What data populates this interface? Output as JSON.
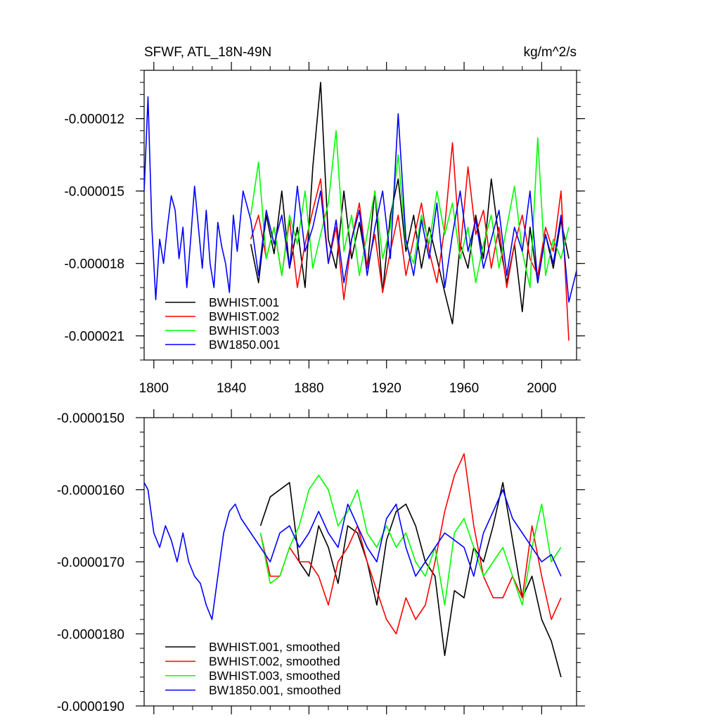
{
  "chart_data": [
    {
      "type": "line",
      "title": "SFWF, ATL_18N-49N",
      "units": "kg/m^2/s",
      "xlabel": "",
      "ylabel": "",
      "xlim": [
        1795,
        2018
      ],
      "ylim": [
        -2.2e-05,
        -1e-05
      ],
      "xticks": [
        1800,
        1840,
        1880,
        1920,
        1960,
        2000
      ],
      "xtick_labels": [
        "1800",
        "1840",
        "1880",
        "1920",
        "1960",
        "2000"
      ],
      "yticks": [
        -1.2e-05,
        -1.5e-05,
        -1.8e-05,
        -2.1e-05
      ],
      "ytick_labels": [
        "-0.000012",
        "-0.000015",
        "-0.000018",
        "-0.000021"
      ],
      "legend_position": "bottom-left",
      "series": [
        {
          "name": "BWHIST.001",
          "color": "#000000",
          "x": [
            1850,
            1854,
            1858,
            1862,
            1866,
            1870,
            1874,
            1878,
            1882,
            1886,
            1890,
            1894,
            1898,
            1902,
            1906,
            1910,
            1914,
            1918,
            1922,
            1926,
            1930,
            1934,
            1938,
            1942,
            1946,
            1950,
            1954,
            1958,
            1962,
            1966,
            1970,
            1974,
            1978,
            1982,
            1986,
            1990,
            1994,
            1998,
            2002,
            2006,
            2010,
            2014
          ],
          "values": [
            -1.72e-05,
            -1.88e-05,
            -1.6e-05,
            -1.76e-05,
            -1.5e-05,
            -1.82e-05,
            -1.65e-05,
            -1.9e-05,
            -1.4e-05,
            -1.05e-05,
            -1.7e-05,
            -1.82e-05,
            -1.5e-05,
            -1.78e-05,
            -1.63e-05,
            -1.82e-05,
            -1.5e-05,
            -1.92e-05,
            -1.6e-05,
            -1.45e-05,
            -1.75e-05,
            -1.6e-05,
            -1.82e-05,
            -1.65e-05,
            -1.78e-05,
            -1.92e-05,
            -2.05e-05,
            -1.72e-05,
            -1.82e-05,
            -1.6e-05,
            -1.78e-05,
            -1.45e-05,
            -1.7e-05,
            -1.88e-05,
            -1.72e-05,
            -2e-05,
            -1.65e-05,
            -1.88e-05,
            -1.68e-05,
            -1.82e-05,
            -1.62e-05,
            -1.78e-05
          ]
        },
        {
          "name": "BWHIST.002",
          "color": "#ff0000",
          "x": [
            1850,
            1854,
            1858,
            1862,
            1866,
            1870,
            1874,
            1878,
            1882,
            1886,
            1890,
            1894,
            1898,
            1902,
            1906,
            1910,
            1914,
            1918,
            1922,
            1926,
            1930,
            1934,
            1938,
            1942,
            1946,
            1950,
            1954,
            1958,
            1962,
            1966,
            1970,
            1974,
            1978,
            1982,
            1986,
            1990,
            1994,
            1998,
            2002,
            2006,
            2010,
            2014
          ],
          "values": [
            -1.7e-05,
            -1.6e-05,
            -1.78e-05,
            -1.65e-05,
            -1.85e-05,
            -1.62e-05,
            -1.9e-05,
            -1.72e-05,
            -1.58e-05,
            -1.45e-05,
            -1.8e-05,
            -1.65e-05,
            -1.95e-05,
            -1.7e-05,
            -1.55e-05,
            -1.82e-05,
            -1.68e-05,
            -1.92e-05,
            -1.75e-05,
            -1.6e-05,
            -1.85e-05,
            -1.7e-05,
            -1.55e-05,
            -1.75e-05,
            -1.88e-05,
            -1.65e-05,
            -1.3e-05,
            -1.75e-05,
            -1.4e-05,
            -1.68e-05,
            -1.58e-05,
            -1.82e-05,
            -1.65e-05,
            -1.9e-05,
            -1.72e-05,
            -1.6e-05,
            -1.78e-05,
            -1.85e-05,
            -1.65e-05,
            -1.75e-05,
            -1.5e-05,
            -2.12e-05
          ]
        },
        {
          "name": "BWHIST.003",
          "color": "#00ff00",
          "x": [
            1850,
            1854,
            1858,
            1862,
            1866,
            1870,
            1874,
            1878,
            1882,
            1886,
            1890,
            1894,
            1898,
            1902,
            1906,
            1910,
            1914,
            1918,
            1922,
            1926,
            1930,
            1934,
            1938,
            1942,
            1946,
            1950,
            1954,
            1958,
            1962,
            1966,
            1970,
            1974,
            1978,
            1982,
            1986,
            1990,
            1994,
            1998,
            2002,
            2006,
            2010,
            2014
          ],
          "values": [
            -1.6e-05,
            -1.38e-05,
            -1.78e-05,
            -1.65e-05,
            -1.85e-05,
            -1.6e-05,
            -1.72e-05,
            -1.5e-05,
            -1.82e-05,
            -1.68e-05,
            -1.55e-05,
            -1.25e-05,
            -1.75e-05,
            -1.6e-05,
            -1.85e-05,
            -1.68e-05,
            -1.5e-05,
            -1.78e-05,
            -1.65e-05,
            -1.35e-05,
            -1.72e-05,
            -1.8e-05,
            -1.6e-05,
            -1.72e-05,
            -1.5e-05,
            -1.68e-05,
            -1.55e-05,
            -1.78e-05,
            -1.65e-05,
            -1.88e-05,
            -1.72e-05,
            -1.6e-05,
            -1.82e-05,
            -1.65e-05,
            -1.48e-05,
            -1.75e-05,
            -1.9e-05,
            -1.28e-05,
            -1.85e-05,
            -1.7e-05,
            -1.78e-05,
            -1.65e-05
          ]
        },
        {
          "name": "BW1850.001",
          "color": "#0000ff",
          "x": [
            1795,
            1797,
            1799,
            1801,
            1803,
            1805,
            1807,
            1809,
            1811,
            1813,
            1815,
            1817,
            1819,
            1821,
            1823,
            1825,
            1827,
            1829,
            1831,
            1833,
            1835,
            1837,
            1839,
            1841,
            1843,
            1846,
            1850,
            1854,
            1858,
            1862,
            1866,
            1870,
            1874,
            1878,
            1882,
            1886,
            1890,
            1894,
            1898,
            1902,
            1906,
            1910,
            1914,
            1918,
            1922,
            1926,
            1930,
            1934,
            1938,
            1942,
            1946,
            1950,
            1954,
            1958,
            1962,
            1966,
            1970,
            1974,
            1978,
            1982,
            1986,
            1990,
            1994,
            1998,
            2002,
            2006,
            2010,
            2014,
            2018
          ],
          "values": [
            -1.5e-05,
            -1.11e-05,
            -1.65e-05,
            -1.95e-05,
            -1.7e-05,
            -1.8e-05,
            -1.65e-05,
            -1.52e-05,
            -1.58e-05,
            -1.78e-05,
            -1.65e-05,
            -1.9e-05,
            -1.7e-05,
            -1.48e-05,
            -1.65e-05,
            -1.82e-05,
            -1.58e-05,
            -1.8e-05,
            -1.9e-05,
            -1.63e-05,
            -1.73e-05,
            -1.8e-05,
            -1.92e-05,
            -1.6e-05,
            -1.75e-05,
            -1.5e-05,
            -1.62e-05,
            -1.85e-05,
            -1.58e-05,
            -1.72e-05,
            -1.6e-05,
            -1.82e-05,
            -1.48e-05,
            -1.75e-05,
            -1.65e-05,
            -1.5e-05,
            -1.8e-05,
            -1.62e-05,
            -1.88e-05,
            -1.7e-05,
            -1.58e-05,
            -1.85e-05,
            -1.65e-05,
            -1.5e-05,
            -1.78e-05,
            -1.18e-05,
            -1.7e-05,
            -1.85e-05,
            -1.62e-05,
            -1.78e-05,
            -1.55e-05,
            -1.9e-05,
            -1.68e-05,
            -1.5e-05,
            -1.75e-05,
            -1.62e-05,
            -1.82e-05,
            -1.7e-05,
            -1.58e-05,
            -1.85e-05,
            -1.65e-05,
            -1.75e-05,
            -1.5e-05,
            -1.88e-05,
            -1.68e-05,
            -1.8e-05,
            -1.6e-05,
            -1.96e-05,
            -1.83e-05
          ]
        }
      ]
    },
    {
      "type": "line",
      "title": "",
      "xlabel": "",
      "ylabel": "",
      "xlim": [
        1795,
        2018
      ],
      "ylim": [
        -1.9e-05,
        -1.5e-05
      ],
      "xticks": [
        1800,
        1840,
        1880,
        1920,
        1960,
        2000
      ],
      "yticks": [
        -1.5e-05,
        -1.6e-05,
        -1.7e-05,
        -1.8e-05,
        -1.9e-05
      ],
      "ytick_labels": [
        "-0.0000150",
        "-0.0000160",
        "-0.0000170",
        "-0.0000180",
        "-0.0000190"
      ],
      "legend_position": "bottom-left",
      "series": [
        {
          "name": "BWHIST.001, smoothed",
          "color": "#000000",
          "x": [
            1855,
            1860,
            1865,
            1870,
            1875,
            1880,
            1885,
            1890,
            1895,
            1900,
            1905,
            1910,
            1915,
            1920,
            1925,
            1930,
            1935,
            1940,
            1945,
            1950,
            1955,
            1960,
            1965,
            1970,
            1975,
            1980,
            1985,
            1990,
            1995,
            2000,
            2005,
            2010
          ],
          "values": [
            -1.65e-05,
            -1.61e-05,
            -1.6e-05,
            -1.59e-05,
            -1.7e-05,
            -1.72e-05,
            -1.65e-05,
            -1.68e-05,
            -1.73e-05,
            -1.65e-05,
            -1.66e-05,
            -1.7e-05,
            -1.76e-05,
            -1.67e-05,
            -1.63e-05,
            -1.62e-05,
            -1.65e-05,
            -1.7e-05,
            -1.72e-05,
            -1.83e-05,
            -1.74e-05,
            -1.75e-05,
            -1.68e-05,
            -1.7e-05,
            -1.65e-05,
            -1.59e-05,
            -1.67e-05,
            -1.75e-05,
            -1.72e-05,
            -1.78e-05,
            -1.81e-05,
            -1.86e-05
          ]
        },
        {
          "name": "BWHIST.002, smoothed",
          "color": "#ff0000",
          "x": [
            1855,
            1860,
            1865,
            1870,
            1875,
            1880,
            1885,
            1890,
            1895,
            1900,
            1905,
            1910,
            1915,
            1920,
            1925,
            1930,
            1935,
            1940,
            1945,
            1950,
            1955,
            1960,
            1965,
            1970,
            1975,
            1980,
            1985,
            1990,
            1995,
            2000,
            2005,
            2010
          ],
          "values": [
            -1.66e-05,
            -1.72e-05,
            -1.72e-05,
            -1.68e-05,
            -1.7e-05,
            -1.7e-05,
            -1.72e-05,
            -1.76e-05,
            -1.7e-05,
            -1.68e-05,
            -1.65e-05,
            -1.7e-05,
            -1.74e-05,
            -1.78e-05,
            -1.8e-05,
            -1.75e-05,
            -1.78e-05,
            -1.76e-05,
            -1.7e-05,
            -1.63e-05,
            -1.58e-05,
            -1.55e-05,
            -1.65e-05,
            -1.72e-05,
            -1.75e-05,
            -1.75e-05,
            -1.72e-05,
            -1.75e-05,
            -1.65e-05,
            -1.72e-05,
            -1.78e-05,
            -1.75e-05
          ]
        },
        {
          "name": "BWHIST.003, smoothed",
          "color": "#00ff00",
          "x": [
            1855,
            1860,
            1865,
            1870,
            1875,
            1880,
            1885,
            1890,
            1895,
            1900,
            1905,
            1910,
            1915,
            1920,
            1925,
            1930,
            1935,
            1940,
            1945,
            1950,
            1955,
            1960,
            1965,
            1970,
            1975,
            1980,
            1985,
            1990,
            1995,
            2000,
            2005,
            2010
          ],
          "values": [
            -1.66e-05,
            -1.73e-05,
            -1.72e-05,
            -1.68e-05,
            -1.65e-05,
            -1.6e-05,
            -1.58e-05,
            -1.6e-05,
            -1.65e-05,
            -1.63e-05,
            -1.6e-05,
            -1.66e-05,
            -1.68e-05,
            -1.65e-05,
            -1.68e-05,
            -1.66e-05,
            -1.7e-05,
            -1.72e-05,
            -1.68e-05,
            -1.76e-05,
            -1.66e-05,
            -1.64e-05,
            -1.68e-05,
            -1.72e-05,
            -1.7e-05,
            -1.68e-05,
            -1.72e-05,
            -1.76e-05,
            -1.68e-05,
            -1.62e-05,
            -1.7e-05,
            -1.68e-05
          ]
        },
        {
          "name": "BW1850.001, smoothed",
          "color": "#0000ff",
          "x": [
            1795,
            1797,
            1800,
            1803,
            1806,
            1809,
            1812,
            1815,
            1818,
            1821,
            1824,
            1827,
            1830,
            1833,
            1836,
            1839,
            1842,
            1845,
            1850,
            1855,
            1860,
            1865,
            1870,
            1875,
            1880,
            1885,
            1890,
            1895,
            1900,
            1905,
            1910,
            1915,
            1920,
            1925,
            1930,
            1935,
            1940,
            1945,
            1950,
            1955,
            1960,
            1965,
            1970,
            1975,
            1980,
            1985,
            1990,
            1995,
            2000,
            2005,
            2010
          ],
          "values": [
            -1.59e-05,
            -1.6e-05,
            -1.66e-05,
            -1.68e-05,
            -1.65e-05,
            -1.67e-05,
            -1.7e-05,
            -1.66e-05,
            -1.7e-05,
            -1.72e-05,
            -1.73e-05,
            -1.76e-05,
            -1.78e-05,
            -1.72e-05,
            -1.66e-05,
            -1.63e-05,
            -1.62e-05,
            -1.64e-05,
            -1.66e-05,
            -1.68e-05,
            -1.7e-05,
            -1.66e-05,
            -1.65e-05,
            -1.68e-05,
            -1.66e-05,
            -1.63e-05,
            -1.66e-05,
            -1.68e-05,
            -1.62e-05,
            -1.65e-05,
            -1.68e-05,
            -1.7e-05,
            -1.64e-05,
            -1.62e-05,
            -1.68e-05,
            -1.72e-05,
            -1.7e-05,
            -1.68e-05,
            -1.66e-05,
            -1.67e-05,
            -1.68e-05,
            -1.72e-05,
            -1.66e-05,
            -1.63e-05,
            -1.6e-05,
            -1.64e-05,
            -1.66e-05,
            -1.68e-05,
            -1.7e-05,
            -1.69e-05,
            -1.72e-05
          ]
        }
      ]
    }
  ]
}
